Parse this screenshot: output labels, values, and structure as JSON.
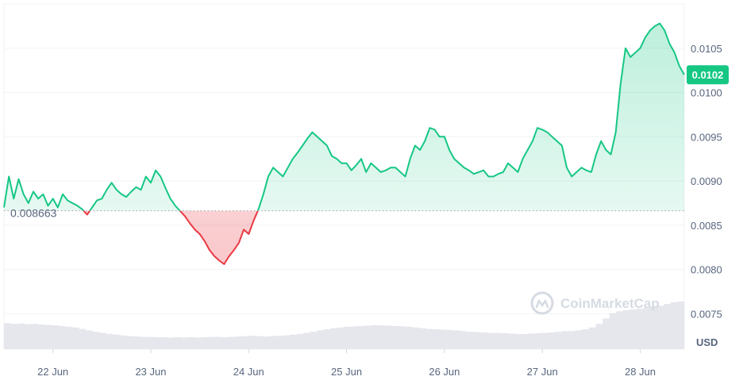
{
  "watermark": {
    "text": "CoinMarketCap"
  },
  "chart_data": {
    "type": "line",
    "unit_label": "USD",
    "reference_value": 0.008663,
    "reference_label": "0.008663",
    "current_value": 0.0102,
    "current_label": "0.0102",
    "ylim": [
      0.0071,
      0.011
    ],
    "y_ticks": [
      "0.0075",
      "0.0080",
      "0.0085",
      "0.0090",
      "0.0095",
      "0.0100",
      "0.0105"
    ],
    "x_ticks": [
      "22 Jun",
      "23 Jun",
      "24 Jun",
      "25 Jun",
      "26 Jun",
      "27 Jun",
      "28 Jun"
    ],
    "xlim": [
      21.5,
      28.45
    ],
    "grid": true,
    "colors": {
      "up": "#16c784",
      "down": "#ea3943",
      "volume": "#e5e7ec"
    },
    "series": [
      {
        "values": [
          [
            21.5,
            0.0087
          ],
          [
            21.55,
            0.00905
          ],
          [
            21.6,
            0.0088
          ],
          [
            21.65,
            0.00902
          ],
          [
            21.7,
            0.00885
          ],
          [
            21.75,
            0.00875
          ],
          [
            21.8,
            0.00888
          ],
          [
            21.85,
            0.0088
          ],
          [
            21.9,
            0.00885
          ],
          [
            21.95,
            0.00872
          ],
          [
            22.0,
            0.0088
          ],
          [
            22.05,
            0.0087
          ],
          [
            22.1,
            0.00885
          ],
          [
            22.15,
            0.00878
          ],
          [
            22.2,
            0.00875
          ],
          [
            22.25,
            0.00872
          ],
          [
            22.3,
            0.00868
          ],
          [
            22.35,
            0.00862
          ],
          [
            22.4,
            0.0087
          ],
          [
            22.45,
            0.00878
          ],
          [
            22.5,
            0.0088
          ],
          [
            22.55,
            0.0089
          ],
          [
            22.6,
            0.00898
          ],
          [
            22.65,
            0.0089
          ],
          [
            22.7,
            0.00885
          ],
          [
            22.75,
            0.00882
          ],
          [
            22.8,
            0.00888
          ],
          [
            22.85,
            0.00893
          ],
          [
            22.9,
            0.0089
          ],
          [
            22.95,
            0.00905
          ],
          [
            23.0,
            0.00898
          ],
          [
            23.05,
            0.00912
          ],
          [
            23.1,
            0.00905
          ],
          [
            23.15,
            0.00892
          ],
          [
            23.2,
            0.0088
          ],
          [
            23.25,
            0.00872
          ],
          [
            23.3,
            0.00866
          ],
          [
            23.35,
            0.0086
          ],
          [
            23.4,
            0.00852
          ],
          [
            23.45,
            0.00845
          ],
          [
            23.5,
            0.0084
          ],
          [
            23.55,
            0.00832
          ],
          [
            23.6,
            0.00822
          ],
          [
            23.65,
            0.00815
          ],
          [
            23.7,
            0.0081
          ],
          [
            23.75,
            0.00806
          ],
          [
            23.8,
            0.00815
          ],
          [
            23.85,
            0.00822
          ],
          [
            23.9,
            0.0083
          ],
          [
            23.95,
            0.00845
          ],
          [
            24.0,
            0.0084
          ],
          [
            24.05,
            0.00855
          ],
          [
            24.1,
            0.00868
          ],
          [
            24.15,
            0.00885
          ],
          [
            24.2,
            0.00905
          ],
          [
            24.25,
            0.00915
          ],
          [
            24.3,
            0.0091
          ],
          [
            24.35,
            0.00905
          ],
          [
            24.4,
            0.00915
          ],
          [
            24.45,
            0.00925
          ],
          [
            24.5,
            0.00932
          ],
          [
            24.55,
            0.0094
          ],
          [
            24.6,
            0.00948
          ],
          [
            24.65,
            0.00955
          ],
          [
            24.7,
            0.0095
          ],
          [
            24.75,
            0.00945
          ],
          [
            24.8,
            0.0094
          ],
          [
            24.85,
            0.00928
          ],
          [
            24.9,
            0.00925
          ],
          [
            24.95,
            0.0092
          ],
          [
            25.0,
            0.0092
          ],
          [
            25.05,
            0.00912
          ],
          [
            25.1,
            0.00918
          ],
          [
            25.15,
            0.00925
          ],
          [
            25.2,
            0.0091
          ],
          [
            25.25,
            0.0092
          ],
          [
            25.3,
            0.00915
          ],
          [
            25.35,
            0.0091
          ],
          [
            25.4,
            0.00912
          ],
          [
            25.45,
            0.00915
          ],
          [
            25.5,
            0.00915
          ],
          [
            25.55,
            0.0091
          ],
          [
            25.6,
            0.00905
          ],
          [
            25.65,
            0.00925
          ],
          [
            25.7,
            0.0094
          ],
          [
            25.75,
            0.00935
          ],
          [
            25.8,
            0.00945
          ],
          [
            25.85,
            0.0096
          ],
          [
            25.9,
            0.00958
          ],
          [
            25.95,
            0.0095
          ],
          [
            26.0,
            0.0095
          ],
          [
            26.05,
            0.00935
          ],
          [
            26.1,
            0.00925
          ],
          [
            26.15,
            0.0092
          ],
          [
            26.2,
            0.00915
          ],
          [
            26.25,
            0.00912
          ],
          [
            26.3,
            0.00908
          ],
          [
            26.35,
            0.0091
          ],
          [
            26.4,
            0.00912
          ],
          [
            26.45,
            0.00905
          ],
          [
            26.5,
            0.00905
          ],
          [
            26.55,
            0.00908
          ],
          [
            26.6,
            0.0091
          ],
          [
            26.65,
            0.0092
          ],
          [
            26.7,
            0.00915
          ],
          [
            26.75,
            0.0091
          ],
          [
            26.8,
            0.00925
          ],
          [
            26.85,
            0.00935
          ],
          [
            26.9,
            0.00945
          ],
          [
            26.95,
            0.0096
          ],
          [
            27.0,
            0.00958
          ],
          [
            27.05,
            0.00955
          ],
          [
            27.1,
            0.0095
          ],
          [
            27.15,
            0.00945
          ],
          [
            27.2,
            0.0094
          ],
          [
            27.25,
            0.00915
          ],
          [
            27.3,
            0.00905
          ],
          [
            27.35,
            0.0091
          ],
          [
            27.4,
            0.00915
          ],
          [
            27.45,
            0.00912
          ],
          [
            27.5,
            0.0091
          ],
          [
            27.55,
            0.0093
          ],
          [
            27.6,
            0.00945
          ],
          [
            27.65,
            0.00935
          ],
          [
            27.7,
            0.0093
          ],
          [
            27.75,
            0.00955
          ],
          [
            27.8,
            0.0101
          ],
          [
            27.85,
            0.0105
          ],
          [
            27.9,
            0.0104
          ],
          [
            27.95,
            0.01045
          ],
          [
            28.0,
            0.0105
          ],
          [
            28.05,
            0.01062
          ],
          [
            28.1,
            0.0107
          ],
          [
            28.15,
            0.01075
          ],
          [
            28.2,
            0.01078
          ],
          [
            28.25,
            0.0107
          ],
          [
            28.3,
            0.01055
          ],
          [
            28.35,
            0.01045
          ],
          [
            28.4,
            0.0103
          ],
          [
            28.45,
            0.0102
          ]
        ]
      }
    ],
    "volume_values": [
      0.72,
      0.7,
      0.71,
      0.69,
      0.7,
      0.68,
      0.67,
      0.66,
      0.64,
      0.62,
      0.6,
      0.56,
      0.52,
      0.48,
      0.45,
      0.42,
      0.4,
      0.38,
      0.36,
      0.35,
      0.34,
      0.34,
      0.33,
      0.33,
      0.32,
      0.33,
      0.32,
      0.33,
      0.32,
      0.33,
      0.34,
      0.34,
      0.33,
      0.34,
      0.35,
      0.36,
      0.37,
      0.36,
      0.35,
      0.36,
      0.37,
      0.38,
      0.4,
      0.42,
      0.45,
      0.48,
      0.52,
      0.55,
      0.58,
      0.6,
      0.62,
      0.63,
      0.64,
      0.65,
      0.66,
      0.66,
      0.65,
      0.64,
      0.63,
      0.62,
      0.6,
      0.58,
      0.56,
      0.55,
      0.54,
      0.53,
      0.52,
      0.5,
      0.48,
      0.47,
      0.46,
      0.45,
      0.45,
      0.44,
      0.43,
      0.42,
      0.42,
      0.43,
      0.44,
      0.45,
      0.46,
      0.48,
      0.5,
      0.5,
      0.52,
      0.55,
      0.6,
      0.7,
      0.85,
      1.0,
      1.05,
      1.08,
      1.1,
      1.12,
      1.15,
      1.17,
      1.2,
      1.25,
      1.3,
      1.32
    ]
  }
}
